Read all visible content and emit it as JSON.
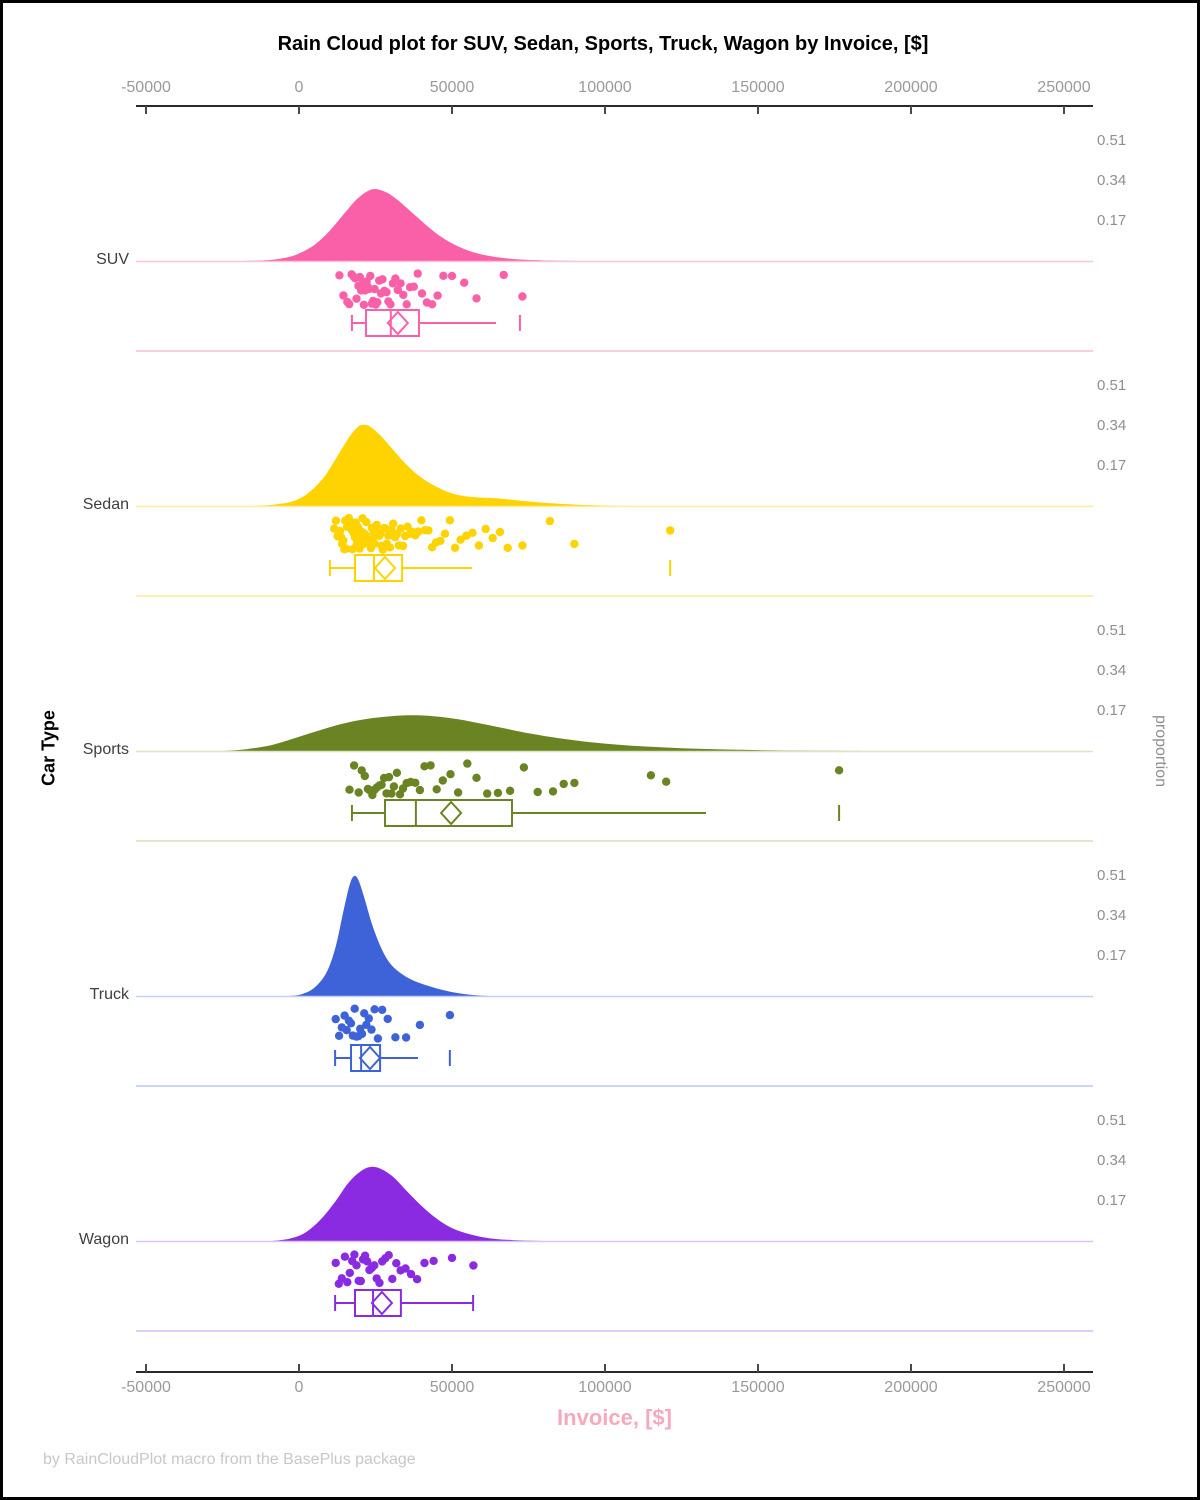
{
  "chart": {
    "title": "Rain Cloud plot for SUV, Sedan, Sports, Truck, Wagon by Invoice, [$]"
  },
  "axes": {
    "x": {
      "label": "Invoice, [$]",
      "tick_labels": [
        "-50000",
        "0",
        "50000",
        "100000",
        "150000",
        "200000",
        "250000"
      ],
      "tick_values": [
        -50000,
        0,
        50000,
        100000,
        150000,
        200000,
        250000
      ]
    },
    "y_left": {
      "label": "Car Type"
    },
    "y_right": {
      "label": "proportion",
      "tick_labels": [
        "0.51",
        "0.34",
        "0.17"
      ],
      "tick_values": [
        0.51,
        0.34,
        0.17
      ]
    }
  },
  "footer": {
    "credit": "by RainCloudPlot macro from the BasePlus package"
  },
  "styles": {
    "title_color": "#000000",
    "tick_label_color": "#9A9A9A",
    "axis_line_color": "#2A2A2A",
    "tick_mark_color": "#4A4A4A",
    "xlabel_color": "#F6A9BD",
    "footer_color": "#C8C8C8",
    "category_label_color": "#3F3F3F",
    "proportion_label_color": "#8F8F8F"
  },
  "chart_data": {
    "type": "raincloud",
    "x_range": [
      -50000,
      250000
    ],
    "proportion_ticks": [
      0.17,
      0.34,
      0.51
    ],
    "categories": [
      {
        "name": "SUV",
        "color": "#F960A8",
        "light_color": "#FBC4DD",
        "density": [
          [
            -18000,
            0
          ],
          [
            -10000,
            0.004
          ],
          [
            -4000,
            0.015
          ],
          [
            0,
            0.032
          ],
          [
            5000,
            0.068
          ],
          [
            10000,
            0.128
          ],
          [
            15000,
            0.205
          ],
          [
            19500,
            0.27
          ],
          [
            24000,
            0.305
          ],
          [
            28000,
            0.295
          ],
          [
            32000,
            0.262
          ],
          [
            37000,
            0.205
          ],
          [
            42000,
            0.148
          ],
          [
            47000,
            0.098
          ],
          [
            53000,
            0.056
          ],
          [
            59000,
            0.03
          ],
          [
            66000,
            0.014
          ],
          [
            73000,
            0.006
          ],
          [
            82000,
            0.002
          ],
          [
            92000,
            0
          ]
        ],
        "box": {
          "low": 17300,
          "q1": 21900,
          "median": 30000,
          "q3": 39200,
          "high": 64400,
          "mean": 32300,
          "outliers": [
            72200
          ],
          "cap_left": true,
          "cap_right": false
        },
        "points": [
          13200,
          14500,
          15800,
          16400,
          17200,
          17900,
          18300,
          18800,
          19400,
          19900,
          20300,
          20800,
          21200,
          21600,
          22100,
          22400,
          22900,
          23300,
          23800,
          24200,
          24700,
          25100,
          25600,
          26200,
          26800,
          27300,
          27900,
          28600,
          29200,
          29900,
          30700,
          31500,
          32300,
          33200,
          34100,
          35200,
          36300,
          37500,
          38800,
          40200,
          41800,
          43500,
          45300,
          47200,
          50000,
          54000,
          58000,
          66900,
          73000
        ]
      },
      {
        "name": "Sedan",
        "color": "#FFD300",
        "light_color": "#FEECA0",
        "density": [
          [
            -15000,
            0
          ],
          [
            -8000,
            0.006
          ],
          [
            -2000,
            0.02
          ],
          [
            3000,
            0.055
          ],
          [
            8000,
            0.12
          ],
          [
            12000,
            0.2
          ],
          [
            16000,
            0.285
          ],
          [
            19000,
            0.333
          ],
          [
            21000,
            0.345
          ],
          [
            23500,
            0.335
          ],
          [
            27000,
            0.295
          ],
          [
            31000,
            0.235
          ],
          [
            35000,
            0.178
          ],
          [
            39000,
            0.13
          ],
          [
            44000,
            0.088
          ],
          [
            49000,
            0.058
          ],
          [
            54000,
            0.042
          ],
          [
            59000,
            0.036
          ],
          [
            64000,
            0.033
          ],
          [
            70000,
            0.026
          ],
          [
            76000,
            0.018
          ],
          [
            83000,
            0.011
          ],
          [
            90000,
            0.006
          ],
          [
            100000,
            0.002
          ],
          [
            110000,
            0
          ]
        ],
        "box": {
          "low": 10100,
          "q1": 18300,
          "median": 24500,
          "q3": 33700,
          "high": 56500,
          "mean": 28100,
          "outliers": [
            121300
          ],
          "cap_left": true,
          "cap_right": false
        },
        "points": [
          11500,
          12100,
          12600,
          13000,
          13400,
          13800,
          14100,
          14500,
          14800,
          15100,
          15400,
          15700,
          16000,
          16300,
          16600,
          16900,
          17200,
          17500,
          17800,
          18000,
          18300,
          18500,
          18800,
          19000,
          19300,
          19500,
          19800,
          20000,
          20300,
          20500,
          20800,
          21000,
          21300,
          21500,
          21800,
          22000,
          22300,
          22600,
          22900,
          23200,
          23500,
          23800,
          24100,
          24400,
          24700,
          25000,
          25400,
          25800,
          26200,
          26600,
          27000,
          27400,
          27800,
          28200,
          28700,
          29200,
          29700,
          30200,
          30800,
          31400,
          32000,
          32600,
          33300,
          34000,
          34700,
          35500,
          36300,
          37100,
          38000,
          39000,
          40000,
          41100,
          42300,
          43500,
          44800,
          46200,
          47700,
          49300,
          51000,
          52800,
          54700,
          56700,
          58800,
          61000,
          63300,
          65700,
          68200,
          73000,
          82000,
          90000,
          121300
        ]
      },
      {
        "name": "Sports",
        "color": "#6A8423",
        "light_color": "#DCE5C4",
        "density": [
          [
            -25000,
            0
          ],
          [
            -17000,
            0.008
          ],
          [
            -9000,
            0.025
          ],
          [
            -2000,
            0.052
          ],
          [
            6000,
            0.085
          ],
          [
            14000,
            0.115
          ],
          [
            22000,
            0.136
          ],
          [
            30000,
            0.148
          ],
          [
            37000,
            0.152
          ],
          [
            44000,
            0.148
          ],
          [
            52000,
            0.135
          ],
          [
            60000,
            0.115
          ],
          [
            68000,
            0.094
          ],
          [
            76000,
            0.073
          ],
          [
            85000,
            0.054
          ],
          [
            95000,
            0.038
          ],
          [
            105000,
            0.026
          ],
          [
            115000,
            0.018
          ],
          [
            125000,
            0.012
          ],
          [
            135000,
            0.008
          ],
          [
            145000,
            0.005
          ],
          [
            158000,
            0.002
          ],
          [
            172000,
            0.001
          ],
          [
            185000,
            0
          ]
        ],
        "box": {
          "low": 17300,
          "q1": 28100,
          "median": 38200,
          "q3": 69600,
          "high": 133000,
          "mean": 49700,
          "outliers": [
            176500
          ],
          "cap_left": true,
          "cap_right": false
        },
        "points": [
          16500,
          18000,
          19500,
          20500,
          21500,
          22500,
          23200,
          24000,
          24800,
          25500,
          26300,
          27000,
          27800,
          28600,
          29400,
          30200,
          31000,
          32000,
          33000,
          34000,
          35200,
          36500,
          38000,
          39500,
          41000,
          43000,
          45000,
          47000,
          49500,
          52000,
          55000,
          58000,
          61500,
          65000,
          69000,
          73500,
          78000,
          83000,
          86500,
          90000,
          115000,
          120000,
          176500
        ]
      },
      {
        "name": "Truck",
        "color": "#3E63D8",
        "light_color": "#C3D1F0",
        "density": [
          [
            -3000,
            0
          ],
          [
            1000,
            0.008
          ],
          [
            5000,
            0.035
          ],
          [
            9000,
            0.1
          ],
          [
            12000,
            0.21
          ],
          [
            14500,
            0.36
          ],
          [
            16500,
            0.47
          ],
          [
            18000,
            0.51
          ],
          [
            19500,
            0.49
          ],
          [
            21500,
            0.41
          ],
          [
            24000,
            0.3
          ],
          [
            27000,
            0.2
          ],
          [
            30000,
            0.135
          ],
          [
            34000,
            0.09
          ],
          [
            38000,
            0.062
          ],
          [
            43000,
            0.04
          ],
          [
            48000,
            0.022
          ],
          [
            53000,
            0.01
          ],
          [
            58000,
            0.003
          ],
          [
            62000,
            0
          ]
        ],
        "box": {
          "low": 11800,
          "q1": 17000,
          "median": 20300,
          "q3": 26500,
          "high": 38900,
          "mean": 23200,
          "outliers": [
            49300
          ],
          "cap_left": true,
          "cap_right": false
        },
        "points": [
          12000,
          13100,
          14000,
          14900,
          15600,
          16300,
          17000,
          17600,
          18200,
          18800,
          19400,
          20000,
          20600,
          21300,
          22000,
          22800,
          23700,
          24700,
          25800,
          27200,
          29000,
          31500,
          35000,
          39500,
          49300
        ]
      },
      {
        "name": "Wagon",
        "color": "#8A2BE2",
        "light_color": "#DCC5F2",
        "density": [
          [
            -9000,
            0
          ],
          [
            -3000,
            0.01
          ],
          [
            2000,
            0.035
          ],
          [
            7000,
            0.09
          ],
          [
            12000,
            0.17
          ],
          [
            16000,
            0.245
          ],
          [
            20000,
            0.295
          ],
          [
            23500,
            0.315
          ],
          [
            27000,
            0.305
          ],
          [
            31000,
            0.27
          ],
          [
            35000,
            0.215
          ],
          [
            40000,
            0.15
          ],
          [
            45000,
            0.095
          ],
          [
            50000,
            0.055
          ],
          [
            56000,
            0.028
          ],
          [
            62000,
            0.012
          ],
          [
            70000,
            0.004
          ],
          [
            80000,
            0
          ]
        ],
        "box": {
          "low": 11800,
          "q1": 18300,
          "median": 24200,
          "q3": 33300,
          "high": 56900,
          "mean": 27100,
          "outliers": [],
          "cap_left": true,
          "cap_right": true
        },
        "points": [
          12000,
          13000,
          14000,
          15000,
          15800,
          16600,
          17400,
          18100,
          18800,
          19500,
          20200,
          20900,
          21600,
          22300,
          23000,
          23800,
          24600,
          25400,
          26300,
          27200,
          28200,
          29300,
          30500,
          31800,
          33200,
          34800,
          36600,
          38600,
          41000,
          44000,
          50000,
          57000
        ]
      }
    ]
  }
}
